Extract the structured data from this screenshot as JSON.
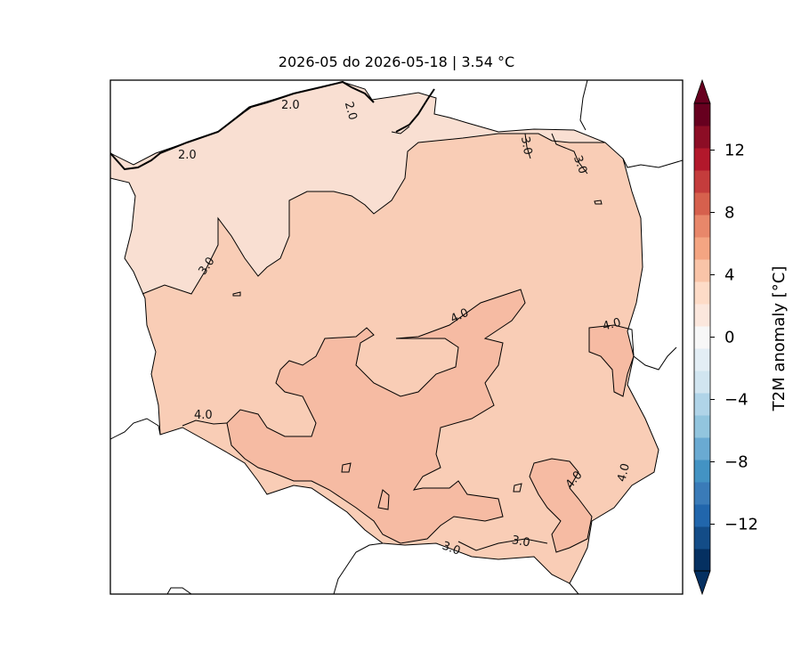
{
  "title": "2026-05 do 2026-05-18 | 3.54 °C",
  "map": {
    "region": "Poland",
    "variable": "T2M anomaly",
    "contour_labels": [
      "2.0",
      "2.0",
      "2.0",
      "3.0",
      "3.0",
      "3.0",
      "4.0",
      "4.0",
      "4.0",
      "4.0",
      "4.0",
      "3.0",
      "3.0"
    ],
    "fill_colors": {
      "level_2_3": "#f9dfd2",
      "level_3_4": "#f9cdb6",
      "level_4_5": "#f6bba3"
    }
  },
  "colorbar": {
    "label": "T2M anomaly [°C]",
    "ticks": [
      "12",
      "8",
      "4",
      "0",
      "−4",
      "−8",
      "−12"
    ],
    "tick_values": [
      12,
      8,
      4,
      0,
      -4,
      -8,
      -12
    ],
    "range": [
      -15,
      15
    ],
    "extend": "both",
    "colors": [
      "#053061",
      "#134c87",
      "#2166ac",
      "#3a7bb8",
      "#4393c3",
      "#6aaad2",
      "#92c5de",
      "#b0d4e8",
      "#d1e5f0",
      "#e3eef5",
      "#f7f7f7",
      "#fbe7dd",
      "#fddbc7",
      "#f9c4a8",
      "#f4a582",
      "#e8876a",
      "#d6604d",
      "#c43c3c",
      "#b2182b",
      "#8c0d25",
      "#67001f"
    ]
  }
}
